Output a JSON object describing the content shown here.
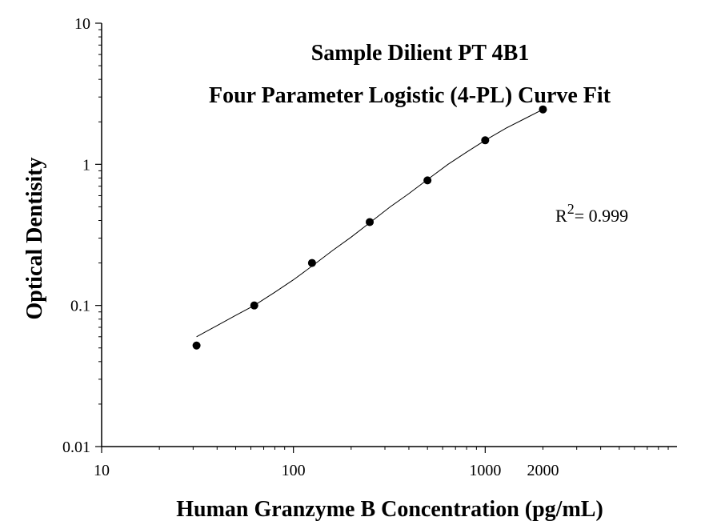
{
  "chart_data": {
    "type": "scatter",
    "title": "Sample Dilient PT 4B1",
    "subtitle": "Four Parameter Logistic (4-PL) Curve Fit",
    "xlabel": "Human Granzyme B Concentration (pg/mL)",
    "ylabel": "Optical Dentisity",
    "x_scale": "log",
    "y_scale": "log",
    "xlim": [
      10,
      2000
    ],
    "ylim": [
      0.01,
      10
    ],
    "x_ticks": [
      "10",
      "100",
      "1000",
      "2000"
    ],
    "y_ticks": [
      "0.01",
      "0.1",
      "1",
      "10"
    ],
    "grid": false,
    "annotation": {
      "text": "R",
      "superscript": "2",
      "value": "= 0.999"
    },
    "series": [
      {
        "type": "scatter",
        "x": [
          31.25,
          62.5,
          125,
          250,
          500,
          1000,
          2000
        ],
        "y": [
          0.052,
          0.1,
          0.2,
          0.39,
          0.77,
          1.48,
          2.45
        ]
      },
      {
        "type": "line",
        "x": [
          31.25,
          40,
          50,
          62.5,
          80,
          100,
          125,
          160,
          200,
          250,
          320,
          400,
          500,
          640,
          800,
          1000,
          1300,
          1600,
          2000
        ],
        "y": [
          0.06,
          0.072,
          0.085,
          0.1,
          0.124,
          0.152,
          0.19,
          0.245,
          0.305,
          0.385,
          0.5,
          0.62,
          0.78,
          1.0,
          1.22,
          1.48,
          1.82,
          2.1,
          2.45
        ]
      }
    ],
    "colors": {
      "marker": "#000000",
      "line": "#000000",
      "axis": "#000000"
    }
  }
}
